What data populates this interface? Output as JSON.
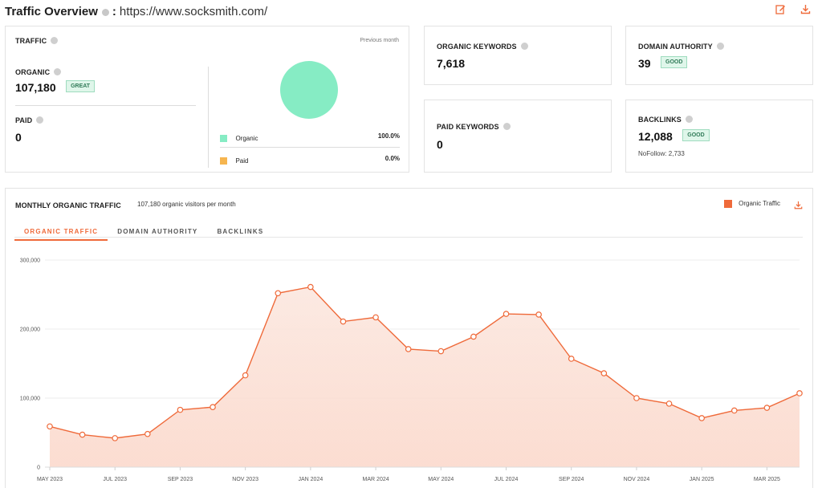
{
  "header": {
    "title": "Traffic Overview",
    "colon": ":",
    "url": "https://www.socksmith.com/"
  },
  "traffic_card": {
    "label": "TRAFFIC",
    "period": "Previous month",
    "organic_label": "ORGANIC",
    "organic_value": "107,180",
    "organic_badge": "GREAT",
    "paid_label": "PAID",
    "paid_value": "0",
    "legend": [
      {
        "name": "Organic",
        "percent": "100.0%",
        "color": "#86ecc4"
      },
      {
        "name": "Paid",
        "percent": "0.0%",
        "color": "#f6b54f"
      }
    ]
  },
  "organic_keywords": {
    "label": "ORGANIC KEYWORDS",
    "value": "7,618"
  },
  "paid_keywords": {
    "label": "PAID KEYWORDS",
    "value": "0"
  },
  "domain_authority": {
    "label": "DOMAIN AUTHORITY",
    "value": "39",
    "badge": "GOOD"
  },
  "backlinks": {
    "label": "BACKLINKS",
    "value": "12,088",
    "badge": "GOOD",
    "nofollow": "NoFollow: 2,733"
  },
  "monthly": {
    "title": "MONTHLY ORGANIC TRAFFIC",
    "subtitle": "107,180 organic visitors per month",
    "legend_label": "Organic Traffic",
    "legend_color": "#ef6a3a",
    "tabs": [
      "ORGANIC TRAFFIC",
      "DOMAIN AUTHORITY",
      "BACKLINKS"
    ]
  },
  "chart_data": {
    "type": "area",
    "x": [
      "MAY 2023",
      "JUN 2023",
      "JUL 2023",
      "AUG 2023",
      "SEP 2023",
      "OCT 2023",
      "NOV 2023",
      "DEC 2023",
      "JAN 2024",
      "FEB 2024",
      "MAR 2024",
      "APR 2024",
      "MAY 2024",
      "JUN 2024",
      "JUL 2024",
      "AUG 2024",
      "SEP 2024",
      "OCT 2024",
      "NOV 2024",
      "DEC 2024",
      "JAN 2025",
      "FEB 2025",
      "MAR 2025",
      "APR 2025"
    ],
    "series": [
      {
        "name": "Organic Traffic",
        "values": [
          59000,
          47000,
          42000,
          48000,
          83000,
          87000,
          133000,
          252000,
          261000,
          211000,
          217000,
          171000,
          168000,
          189000,
          222000,
          221000,
          157000,
          136000,
          100000,
          92000,
          71000,
          82000,
          86000,
          107000
        ]
      }
    ],
    "x_tick_labels": [
      "MAY 2023",
      "JUL 2023",
      "SEP 2023",
      "NOV 2023",
      "JAN 2024",
      "MAR 2024",
      "MAY 2024",
      "JUL 2024",
      "SEP 2024",
      "NOV 2024",
      "JAN 2025",
      "MAR 2025"
    ],
    "y_ticks": [
      "0",
      "100,000",
      "200,000",
      "300,000"
    ],
    "ylim": [
      0,
      300000
    ],
    "grid": true,
    "color": "#ef6a3a"
  }
}
